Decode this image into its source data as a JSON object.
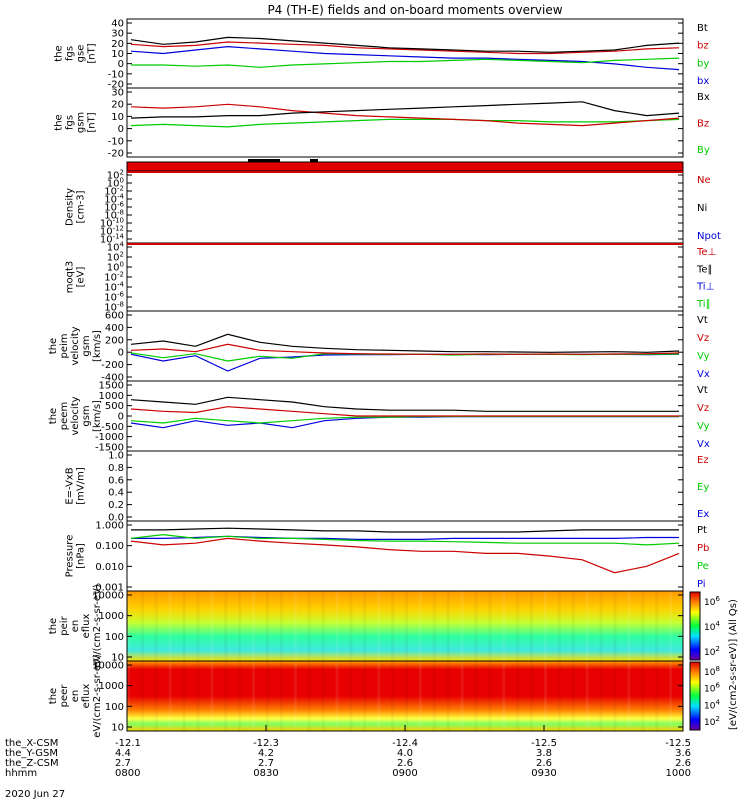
{
  "title": "P4 (TH-E) fields and on-board moments overview",
  "date_label": "2020 Jun 27",
  "colorbar": {
    "label": "[eV/(cm2-s-sr-eV)] (All Qs)",
    "ticks_top": [
      "10^6",
      "10^4",
      "10^2"
    ],
    "ticks_bottom": [
      "10^8",
      "10^6",
      "10^4",
      "10^2"
    ]
  },
  "xaxis": {
    "row_labels": [
      "the_X-CSM",
      "the_Y-GSM",
      "the_Z-CSM",
      "hhmm"
    ],
    "columns": [
      {
        "x": "-12.1",
        "y": "4.4",
        "z": "2.7",
        "t": "0800"
      },
      {
        "x": "-12.3",
        "y": "4.2",
        "z": "2.7",
        "t": "0830"
      },
      {
        "x": "-12.4",
        "y": "4.0",
        "z": "2.6",
        "t": "0900"
      },
      {
        "x": "-12.5",
        "y": "3.8",
        "z": "2.6",
        "t": "0930"
      },
      {
        "x": "-12.5",
        "y": "3.6",
        "z": "2.6",
        "t": "1000"
      }
    ]
  },
  "colors": {
    "black": "#000000",
    "red": "#cc0000",
    "green": "#00cc00",
    "blue": "#0000dd"
  },
  "chart_data": [
    {
      "type": "line",
      "ylabel": "the fgs gse [nT]",
      "yticks": [
        "40",
        "30",
        "20",
        "10",
        "0",
        "-10",
        "-20"
      ],
      "ylim": [
        -20,
        40
      ],
      "series": [
        {
          "name": "Bt",
          "color": "#000000",
          "values": [
            22,
            18,
            20,
            24,
            23,
            21,
            19,
            17,
            15,
            14,
            13,
            12,
            12,
            11,
            12,
            13,
            17,
            19
          ]
        },
        {
          "name": "bz",
          "color": "#cc0000",
          "values": [
            18,
            16,
            17,
            20,
            19,
            18,
            17,
            15,
            14,
            13,
            12,
            11,
            10,
            10,
            11,
            12,
            14,
            15
          ]
        },
        {
          "name": "by",
          "color": "#00cc00",
          "values": [
            0,
            0,
            -1,
            0,
            -2,
            0,
            1,
            2,
            3,
            3,
            4,
            5,
            4,
            3,
            2,
            4,
            5,
            6
          ]
        },
        {
          "name": "bx",
          "color": "#0000dd",
          "values": [
            12,
            10,
            13,
            16,
            14,
            12,
            10,
            9,
            8,
            7,
            6,
            6,
            5,
            4,
            3,
            1,
            -2,
            -4
          ]
        }
      ]
    },
    {
      "type": "line",
      "ylabel": "the fgs gsm [nT]",
      "yticks": [
        "30",
        "20",
        "10",
        "0",
        "-10",
        "-20"
      ],
      "ylim": [
        -25,
        30
      ],
      "series": [
        {
          "name": "Bx",
          "color": "#000000",
          "values": [
            6,
            7,
            7,
            8,
            8,
            10,
            11,
            12,
            13,
            14,
            15,
            16,
            17,
            18,
            19,
            12,
            8,
            10
          ]
        },
        {
          "name": "Bz",
          "color": "#cc0000",
          "values": [
            15,
            14,
            15,
            17,
            15,
            12,
            10,
            8,
            7,
            6,
            5,
            4,
            2,
            1,
            0,
            2,
            4,
            6
          ]
        },
        {
          "name": "By",
          "color": "#00cc00",
          "values": [
            0,
            1,
            0,
            -1,
            1,
            2,
            3,
            4,
            5,
            5,
            5,
            4,
            4,
            3,
            3,
            3,
            4,
            5
          ]
        }
      ]
    },
    {
      "type": "line",
      "ylabel": "Density [cm-3]",
      "yticks": [
        "10^2",
        "10^0",
        "10^-2",
        "10^-4",
        "10^-6",
        "10^-8",
        "10^-10",
        "10^-12",
        "10^-14"
      ],
      "series": [
        {
          "name": "Ne",
          "color": "#cc0000"
        },
        {
          "name": "Ni",
          "color": "#000000"
        },
        {
          "name": "Npot",
          "color": "#0000dd"
        }
      ]
    },
    {
      "type": "line",
      "ylabel": "moqt3 [eV]",
      "yticks": [
        "10^4",
        "10^2",
        "10^0",
        "10^-2",
        "10^-4",
        "10^-6",
        "10^-8"
      ],
      "series": [
        {
          "name": "Te⊥",
          "color": "#cc0000"
        },
        {
          "name": "Te∥",
          "color": "#000000"
        },
        {
          "name": "Ti⊥",
          "color": "#0000dd"
        },
        {
          "name": "Ti∥",
          "color": "#00cc00"
        }
      ]
    },
    {
      "type": "line",
      "ylabel": "the peim velocity gsm [km/s]",
      "yticks": [
        "600",
        "400",
        "200",
        "0",
        "-200",
        "-400"
      ],
      "ylim": [
        -400,
        650
      ],
      "series": [
        {
          "name": "Vt",
          "color": "#000000",
          "values": [
            150,
            200,
            120,
            300,
            180,
            120,
            90,
            70,
            60,
            50,
            40,
            40,
            35,
            30,
            35,
            40,
            30,
            50
          ]
        },
        {
          "name": "Vz",
          "color": "#cc0000",
          "values": [
            60,
            80,
            40,
            150,
            60,
            40,
            20,
            10,
            5,
            0,
            0,
            5,
            0,
            5,
            0,
            5,
            10,
            20
          ]
        },
        {
          "name": "Vy",
          "color": "#00cc00",
          "values": [
            20,
            -50,
            10,
            -100,
            -30,
            -60,
            10,
            5,
            0,
            0,
            -10,
            0,
            0,
            0,
            -5,
            0,
            0,
            5
          ]
        },
        {
          "name": "Vx",
          "color": "#0000dd",
          "values": [
            0,
            -100,
            -20,
            -250,
            -60,
            -40,
            -10,
            -5,
            -5,
            0,
            0,
            -5,
            0,
            0,
            0,
            0,
            -5,
            0
          ]
        }
      ]
    },
    {
      "type": "line",
      "ylabel": "the peem velocity gsm [km/s]",
      "yticks": [
        "1500",
        "1000",
        "500",
        "0",
        "-500",
        "-1000",
        "-1500"
      ],
      "ylim": [
        -1500,
        1500
      ],
      "series": [
        {
          "name": "Vt",
          "color": "#000000",
          "values": [
            700,
            600,
            500,
            800,
            700,
            600,
            400,
            300,
            250,
            250,
            250,
            200,
            200,
            200,
            200,
            200,
            200,
            200
          ]
        },
        {
          "name": "Vz",
          "color": "#cc0000",
          "values": [
            300,
            200,
            150,
            400,
            300,
            200,
            100,
            0,
            0,
            0,
            0,
            0,
            0,
            0,
            0,
            0,
            0,
            0
          ]
        },
        {
          "name": "Vy",
          "color": "#00cc00",
          "values": [
            -200,
            -300,
            -100,
            -200,
            -300,
            -200,
            -100,
            -50,
            -50,
            -20,
            -20,
            -20,
            -20,
            -20,
            -20,
            -20,
            -20,
            -20
          ]
        },
        {
          "name": "Vx",
          "color": "#0000dd",
          "values": [
            -300,
            -500,
            -200,
            -400,
            -300,
            -500,
            -200,
            -100,
            -50,
            -50,
            -30,
            -30,
            -30,
            -30,
            -30,
            -30,
            -30,
            -30
          ]
        }
      ]
    },
    {
      "type": "line",
      "ylabel": "E=-VxB [mV/m]",
      "yticks": [
        "1.0",
        "0.8",
        "0.6",
        "0.4",
        "0.2",
        "0.0"
      ],
      "ylim": [
        0,
        1
      ],
      "series": [
        {
          "name": "Ez",
          "color": "#cc0000"
        },
        {
          "name": "Ey",
          "color": "#00cc00"
        },
        {
          "name": "Ex",
          "color": "#0000dd"
        }
      ]
    },
    {
      "type": "line",
      "ylabel": "Pressure [nPa]",
      "yticks": [
        "1.000",
        "0.100",
        "0.010",
        "0.001"
      ],
      "log": true,
      "ylim": [
        0.0007,
        1.3
      ],
      "series": [
        {
          "name": "Pt",
          "color": "#000000",
          "values": [
            0.5,
            0.5,
            0.55,
            0.6,
            0.55,
            0.5,
            0.45,
            0.45,
            0.4,
            0.4,
            0.4,
            0.4,
            0.4,
            0.45,
            0.5,
            0.5,
            0.5,
            0.5
          ]
        },
        {
          "name": "Pb",
          "color": "#cc0000",
          "values": [
            0.15,
            0.1,
            0.12,
            0.2,
            0.15,
            0.12,
            0.1,
            0.08,
            0.06,
            0.05,
            0.05,
            0.04,
            0.04,
            0.03,
            0.02,
            0.005,
            0.01,
            0.04
          ]
        },
        {
          "name": "Pe",
          "color": "#00cc00",
          "values": [
            0.2,
            0.3,
            0.2,
            0.25,
            0.2,
            0.2,
            0.18,
            0.16,
            0.15,
            0.15,
            0.14,
            0.13,
            0.12,
            0.12,
            0.12,
            0.12,
            0.1,
            0.12
          ]
        },
        {
          "name": "Pi",
          "color": "#0000dd",
          "values": [
            0.2,
            0.2,
            0.22,
            0.25,
            0.22,
            0.2,
            0.2,
            0.18,
            0.18,
            0.18,
            0.2,
            0.2,
            0.2,
            0.2,
            0.2,
            0.2,
            0.22,
            0.22
          ]
        }
      ]
    },
    {
      "type": "heatmap",
      "ylabel": "the peir en eflux eV/(cm2-s-sr-eV)",
      "yticks": [
        "10000",
        "1000",
        "100",
        "10"
      ]
    },
    {
      "type": "heatmap",
      "ylabel": "the peer en eflux eV/(cm2-s-sr-eV)",
      "yticks": [
        "10000",
        "1000",
        "100",
        "10"
      ]
    }
  ]
}
